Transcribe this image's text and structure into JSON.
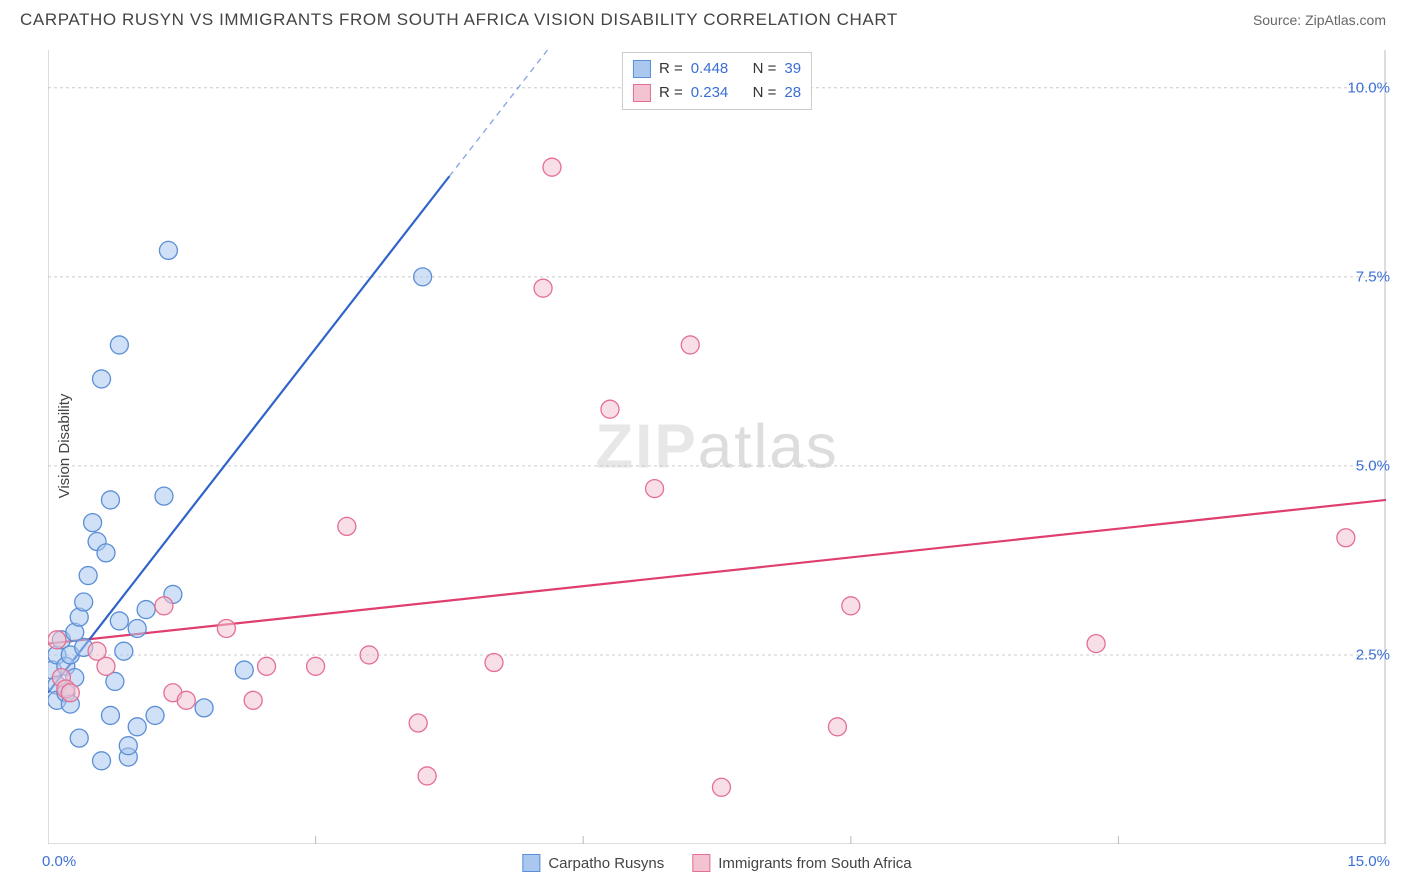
{
  "header": {
    "title": "CARPATHO RUSYN VS IMMIGRANTS FROM SOUTH AFRICA VISION DISABILITY CORRELATION CHART",
    "source": "Source: ZipAtlas.com"
  },
  "chart": {
    "type": "scatter",
    "ylabel": "Vision Disability",
    "watermark_a": "ZIP",
    "watermark_b": "atlas",
    "background_color": "#ffffff",
    "grid_color": "#cccccc",
    "axis_color": "#bbbbbb",
    "tick_label_color": "#3b6fd6",
    "xlim": [
      0,
      15
    ],
    "ylim": [
      0,
      10.5
    ],
    "ygrid": [
      2.5,
      5.0,
      7.5,
      10.0
    ],
    "ytick_labels": [
      "2.5%",
      "5.0%",
      "7.5%",
      "10.0%"
    ],
    "xtick_minor": [
      3,
      6,
      9,
      12
    ],
    "xtick_label_left": "0.0%",
    "xtick_label_right": "15.0%",
    "marker_radius": 9,
    "marker_opacity": 0.55,
    "series": [
      {
        "name": "Carpatho Rusyns",
        "fill": "#a9c7ef",
        "stroke": "#5b8fd6",
        "r": 0.448,
        "n": 39,
        "trend": {
          "x1": 0,
          "y1": 2.0,
          "x2": 5.6,
          "y2": 10.5,
          "solid_to_x": 4.5,
          "stroke": "#2f64c9",
          "width": 2.2
        },
        "points": [
          [
            0.05,
            2.3
          ],
          [
            0.1,
            2.5
          ],
          [
            0.1,
            2.1
          ],
          [
            0.1,
            1.9
          ],
          [
            0.15,
            2.7
          ],
          [
            0.2,
            2.0
          ],
          [
            0.2,
            2.35
          ],
          [
            0.25,
            2.5
          ],
          [
            0.25,
            1.85
          ],
          [
            0.3,
            2.8
          ],
          [
            0.3,
            2.2
          ],
          [
            0.35,
            3.0
          ],
          [
            0.35,
            1.4
          ],
          [
            0.4,
            3.2
          ],
          [
            0.4,
            2.6
          ],
          [
            0.45,
            3.55
          ],
          [
            0.5,
            4.25
          ],
          [
            0.55,
            4.0
          ],
          [
            0.6,
            6.15
          ],
          [
            0.6,
            1.1
          ],
          [
            0.65,
            3.85
          ],
          [
            0.7,
            4.55
          ],
          [
            0.7,
            1.7
          ],
          [
            0.75,
            2.15
          ],
          [
            0.8,
            6.6
          ],
          [
            0.8,
            2.95
          ],
          [
            0.85,
            2.55
          ],
          [
            0.9,
            1.15
          ],
          [
            0.9,
            1.3
          ],
          [
            1.0,
            1.55
          ],
          [
            1.0,
            2.85
          ],
          [
            1.1,
            3.1
          ],
          [
            1.2,
            1.7
          ],
          [
            1.3,
            4.6
          ],
          [
            1.35,
            7.85
          ],
          [
            1.4,
            3.3
          ],
          [
            1.75,
            1.8
          ],
          [
            2.2,
            2.3
          ],
          [
            4.2,
            7.5
          ]
        ]
      },
      {
        "name": "Immigrants from South Africa",
        "fill": "#f3c3d1",
        "stroke": "#e46f93",
        "r": 0.234,
        "n": 28,
        "trend": {
          "x1": 0,
          "y1": 2.65,
          "x2": 15,
          "y2": 4.55,
          "solid_to_x": 15,
          "stroke": "#e03e6e",
          "width": 2.2
        },
        "points": [
          [
            0.1,
            2.7
          ],
          [
            0.15,
            2.2
          ],
          [
            0.2,
            2.05
          ],
          [
            0.25,
            2.0
          ],
          [
            0.55,
            2.55
          ],
          [
            0.65,
            2.35
          ],
          [
            1.3,
            3.15
          ],
          [
            1.4,
            2.0
          ],
          [
            1.55,
            1.9
          ],
          [
            2.0,
            2.85
          ],
          [
            2.3,
            1.9
          ],
          [
            2.45,
            2.35
          ],
          [
            3.0,
            2.35
          ],
          [
            3.35,
            4.2
          ],
          [
            3.6,
            2.5
          ],
          [
            4.15,
            1.6
          ],
          [
            4.25,
            0.9
          ],
          [
            5.0,
            2.4
          ],
          [
            5.55,
            7.35
          ],
          [
            5.65,
            8.95
          ],
          [
            6.3,
            5.75
          ],
          [
            6.8,
            4.7
          ],
          [
            7.2,
            6.6
          ],
          [
            7.55,
            0.75
          ],
          [
            8.85,
            1.55
          ],
          [
            9.0,
            3.15
          ],
          [
            11.75,
            2.65
          ],
          [
            14.55,
            4.05
          ]
        ]
      }
    ],
    "top_legend": {
      "r_label": "R =",
      "n_label": "N ="
    },
    "bottom_legend": {
      "items": [
        "Carpatho Rusyns",
        "Immigrants from South Africa"
      ]
    }
  }
}
